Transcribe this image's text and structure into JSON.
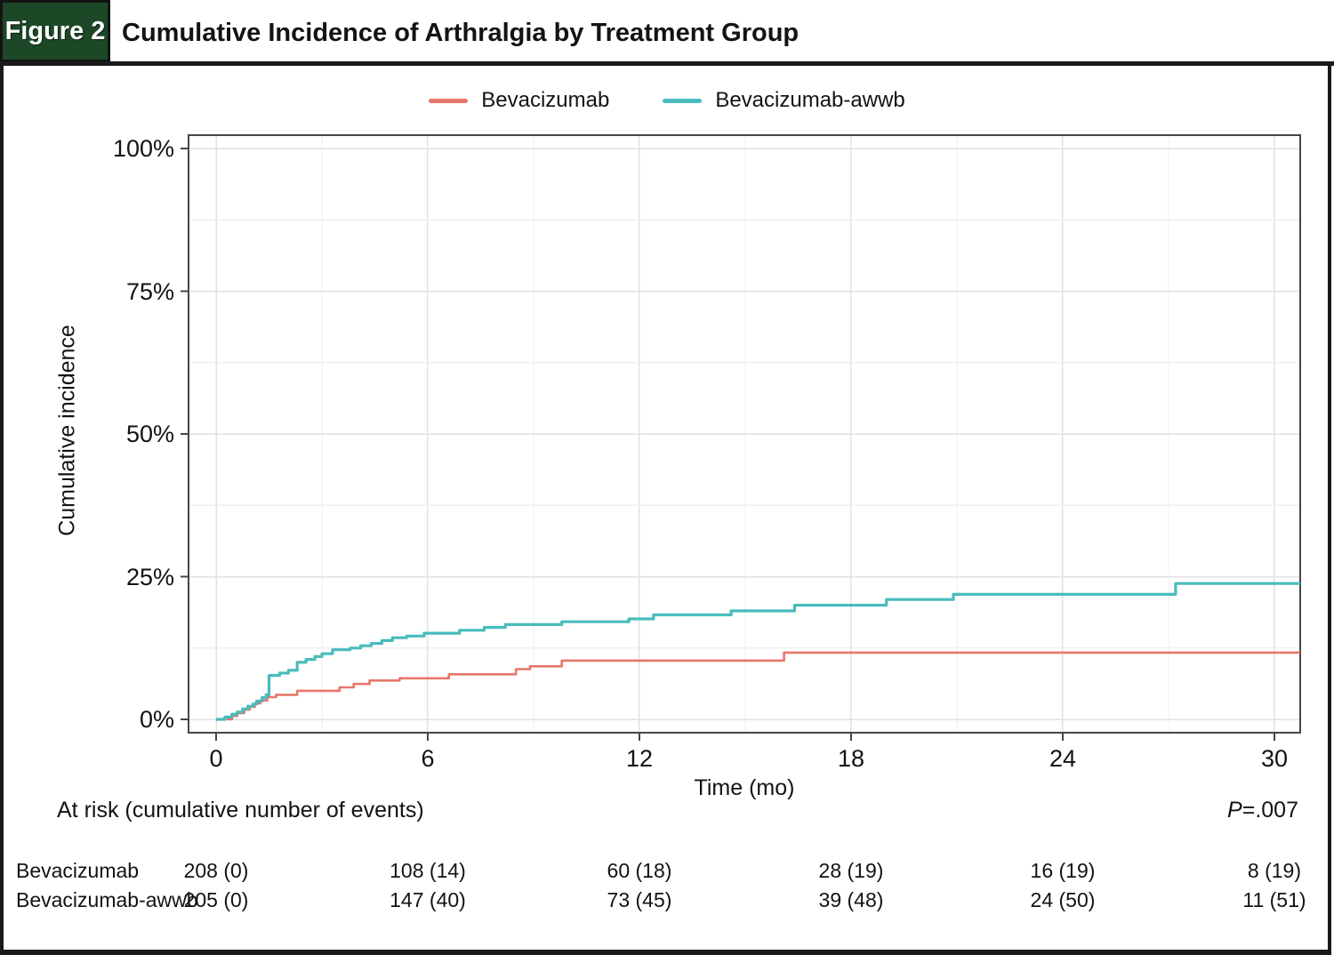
{
  "figure": {
    "label": "Figure 2",
    "title": "Cumulative Incidence of Arthralgia by Treatment Group",
    "accent_green": "#1c4827"
  },
  "chart_data": {
    "type": "line",
    "variant": "cumulative-incidence-step-curve",
    "title": "Cumulative Incidence of Arthralgia by Treatment Group",
    "xlabel": "Time (mo)",
    "ylabel": "Cumulative incidence",
    "x_ticks": [
      0,
      6,
      12,
      18,
      24,
      30
    ],
    "y_tick_values": [
      0,
      25,
      50,
      75,
      100
    ],
    "y_tick_labels": [
      "0%",
      "25%",
      "50%",
      "75%",
      "100%"
    ],
    "xlim": [
      -0.78,
      30.73
    ],
    "ylim": [
      -2.3,
      102.3
    ],
    "grid": {
      "on": true,
      "x_minor_every": 3,
      "y_minor_every": 12.5
    },
    "legend_position": "top-center",
    "p_value": "P=.007",
    "series": [
      {
        "name": "Bevacizumab",
        "color": "#e8766b",
        "steps": [
          [
            0.3,
            0
          ],
          [
            0.45,
            0.6
          ],
          [
            0.6,
            1.1
          ],
          [
            0.8,
            1.7
          ],
          [
            0.95,
            2.2
          ],
          [
            1.1,
            2.8
          ],
          [
            1.25,
            3.3
          ],
          [
            1.45,
            3.9
          ],
          [
            1.7,
            4.3
          ],
          [
            2.3,
            5.0
          ],
          [
            3.5,
            5.6
          ],
          [
            3.9,
            6.2
          ],
          [
            4.35,
            6.8
          ],
          [
            5.2,
            7.2
          ],
          [
            6.6,
            7.9
          ],
          [
            8.5,
            8.8
          ],
          [
            8.9,
            9.3
          ],
          [
            9.8,
            10.3
          ],
          [
            16.1,
            11.7
          ]
        ]
      },
      {
        "name": "Bevacizumab-awwb",
        "color": "#49bcbd",
        "steps": [
          [
            0,
            0
          ],
          [
            0.25,
            0.4
          ],
          [
            0.45,
            0.9
          ],
          [
            0.6,
            1.3
          ],
          [
            0.75,
            1.8
          ],
          [
            0.9,
            2.3
          ],
          [
            1.05,
            2.7
          ],
          [
            1.15,
            3.2
          ],
          [
            1.3,
            3.8
          ],
          [
            1.42,
            4.3
          ],
          [
            1.5,
            7.7
          ],
          [
            1.8,
            8.1
          ],
          [
            2.05,
            8.6
          ],
          [
            2.3,
            10.0
          ],
          [
            2.55,
            10.5
          ],
          [
            2.8,
            11.0
          ],
          [
            3.0,
            11.5
          ],
          [
            3.3,
            12.2
          ],
          [
            3.8,
            12.5
          ],
          [
            4.1,
            12.9
          ],
          [
            4.4,
            13.3
          ],
          [
            4.7,
            13.8
          ],
          [
            5.0,
            14.3
          ],
          [
            5.4,
            14.6
          ],
          [
            5.9,
            15.1
          ],
          [
            6.9,
            15.6
          ],
          [
            7.6,
            16.1
          ],
          [
            8.2,
            16.6
          ],
          [
            9.8,
            17.1
          ],
          [
            11.7,
            17.6
          ],
          [
            12.4,
            18.3
          ],
          [
            14.6,
            19.0
          ],
          [
            16.4,
            20.0
          ],
          [
            19.0,
            21.0
          ],
          [
            20.9,
            21.9
          ],
          [
            27.2,
            23.8
          ]
        ]
      }
    ]
  },
  "at_risk": {
    "caption": "At risk (cumulative number of events)",
    "time_points": [
      0,
      6,
      12,
      18,
      24,
      30
    ],
    "rows": [
      {
        "name": "Bevacizumab",
        "values": [
          "208 (0)",
          "108 (14)",
          "60 (18)",
          "28 (19)",
          "16 (19)",
          "8 (19)"
        ]
      },
      {
        "name": "Bevacizumab-awwb",
        "values": [
          "205 (0)",
          "147 (40)",
          "73 (45)",
          "39 (48)",
          "24 (50)",
          "11 (51)"
        ]
      }
    ]
  }
}
